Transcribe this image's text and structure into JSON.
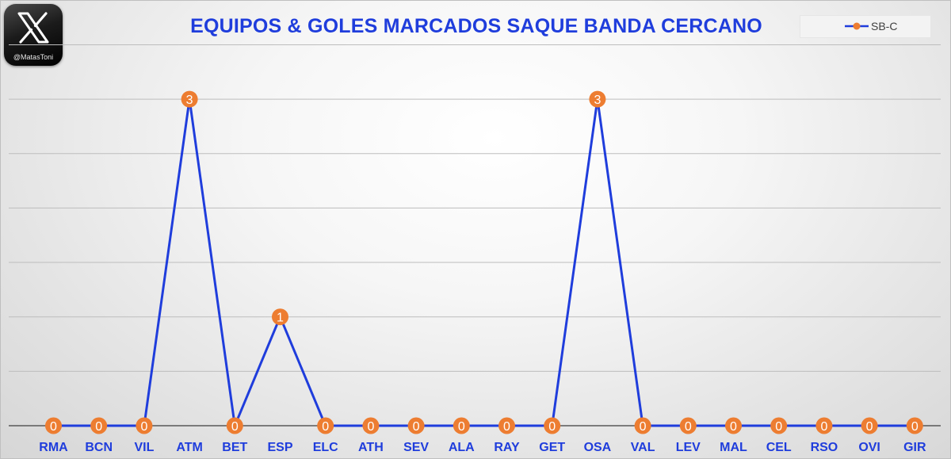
{
  "watermark": {
    "handle": "@MatasToni",
    "icon": "x-logo-icon"
  },
  "colors": {
    "line": "#1f3ddc",
    "marker": "#ed7d31",
    "title": "#1f3ddc",
    "grid": "#bdbdbd",
    "axis": "#595959"
  },
  "chart_data": {
    "type": "line",
    "title": "EQUIPOS & GOLES MARCADOS SAQUE BANDA CERCANO",
    "xlabel": "",
    "ylabel": "",
    "categories": [
      "RMA",
      "BCN",
      "VIL",
      "ATM",
      "BET",
      "ESP",
      "ELC",
      "ATH",
      "SEV",
      "ALA",
      "RAY",
      "GET",
      "OSA",
      "VAL",
      "LEV",
      "MAL",
      "CEL",
      "RSO",
      "OVI",
      "GIR"
    ],
    "series": [
      {
        "name": "SB-C",
        "values": [
          0,
          0,
          0,
          3,
          0,
          1,
          0,
          0,
          0,
          0,
          0,
          0,
          3,
          0,
          0,
          0,
          0,
          0,
          0,
          0
        ]
      }
    ],
    "ylim": [
      0,
      3.5
    ],
    "y_gridline_step": 0.5,
    "grid": true,
    "y_tick_labels_shown": false,
    "data_labels": true,
    "legend_position": "top-right"
  }
}
